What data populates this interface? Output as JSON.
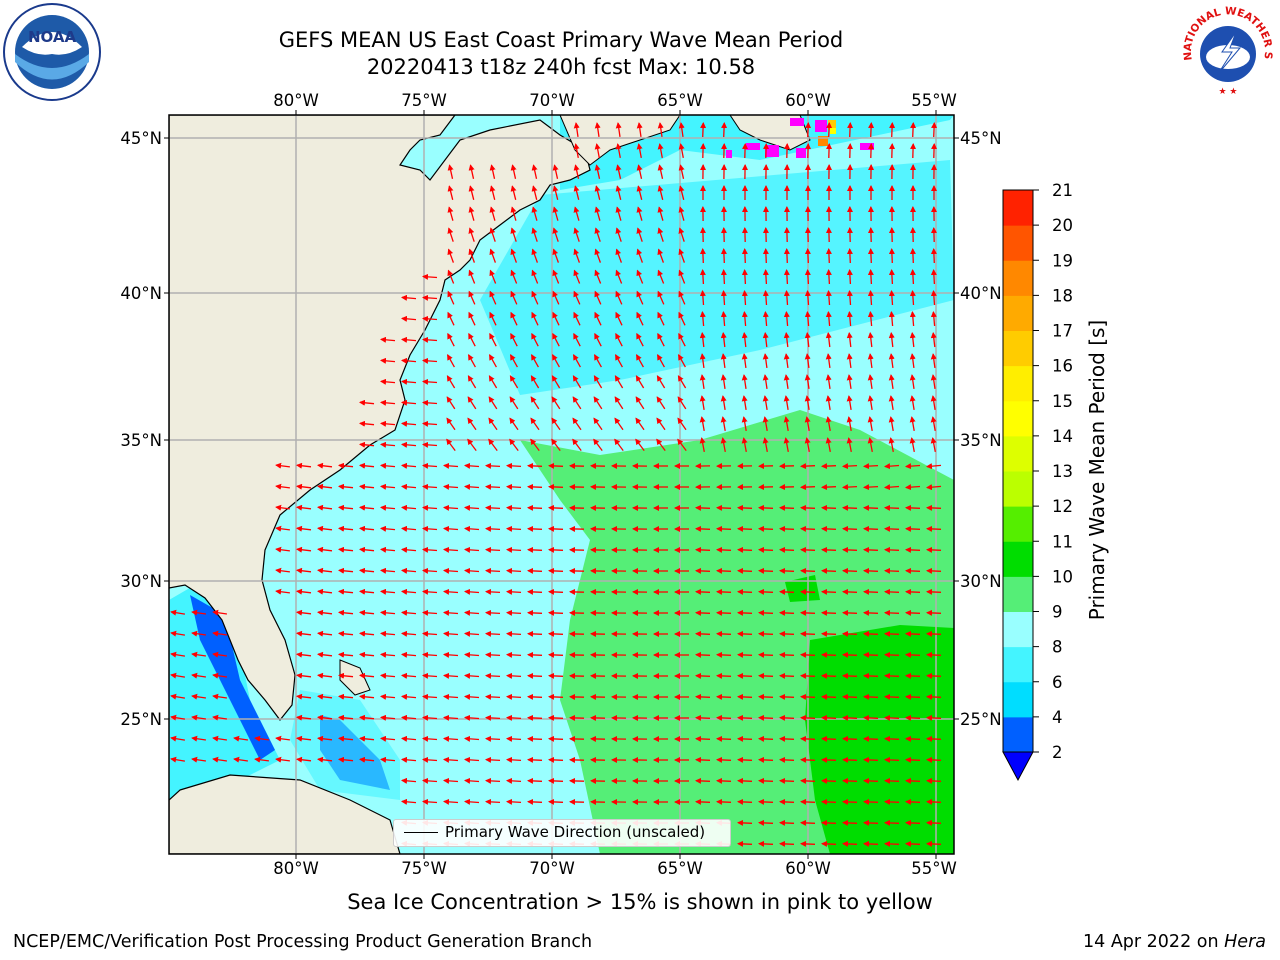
{
  "title": {
    "line1": "GEFS MEAN US East Coast Primary Wave Mean Period",
    "line2": "20220413 t18z 240h fcst   Max: 10.58"
  },
  "map": {
    "lon_labels": [
      "80°W",
      "75°W",
      "70°W",
      "65°W",
      "60°W",
      "55°W"
    ],
    "lat_labels": [
      "45°N",
      "40°N",
      "35°N",
      "30°N",
      "25°N"
    ],
    "land_color": "#efedde",
    "grid_color": "#b0b0b0",
    "arrow_color": "#ff0000",
    "legend_label": "Primary Wave Direction (unscaled)"
  },
  "colorbar": {
    "label": "Primary Wave Mean Period [s]",
    "ticks": [
      "2",
      "4",
      "6",
      "8",
      "9",
      "10",
      "11",
      "12",
      "13",
      "14",
      "15",
      "16",
      "17",
      "18",
      "19",
      "20",
      "21"
    ],
    "colors": [
      "#0060ff",
      "#00ddff",
      "#44f4ff",
      "#99ffff",
      "#55ee77",
      "#00dd00",
      "#55ee00",
      "#bbff00",
      "#ddff00",
      "#ffff00",
      "#ffee00",
      "#ffcc00",
      "#ffaa00",
      "#ff8800",
      "#ff5500",
      "#ff2200"
    ],
    "under_color": "#0000ff"
  },
  "note": "Sea Ice Concentration > 15% is shown in pink to yellow",
  "footer": {
    "left": "NCEP/EMC/Verification Post Processing Product Generation Branch",
    "right_prefix": "14 Apr 2022 on ",
    "right_host": "Hera"
  },
  "logos": {
    "noaa_text": "NOAA",
    "nws_text": "NATIONAL WEATHER SERVICE"
  }
}
